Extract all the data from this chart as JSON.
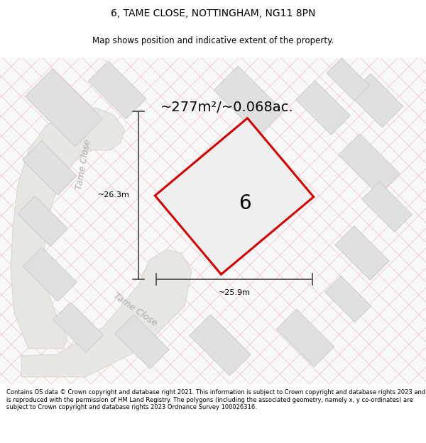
{
  "title_line1": "6, TAME CLOSE, NOTTINGHAM, NG11 8PN",
  "title_line2": "Map shows position and indicative extent of the property.",
  "area_text": "~277m²/~0.068ac.",
  "plot_number": "6",
  "dim_width": "~25.9m",
  "dim_height": "~26.3m",
  "street_label1": "Tame Close",
  "street_label2": "Tame Close",
  "footer_text": "Contains OS data © Crown copyright and database right 2021. This information is subject to Crown copyright and database rights 2023 and is reproduced with the permission of HM Land Registry. The polygons (including the associated geometry, namely x, y co-ordinates) are subject to Crown copyright and database rights 2023 Ordnance Survey 100026316.",
  "bg_color": "#f5f5f5",
  "map_bg_color": "#f8f8f8",
  "plot_fill": "#efefef",
  "plot_edge": "#cc0000",
  "building_fill": "#e0e0e0",
  "building_edge": "#cccccc",
  "hatch_color": "#f0c8c8",
  "road_color": "#e8e8e8",
  "dim_color": "#444444",
  "street_color": "#aaaaaa",
  "title_bg": "#ffffff",
  "footer_bg": "#ffffff",
  "title_fontsize": 10,
  "subtitle_fontsize": 8.5,
  "area_fontsize": 14,
  "dim_fontsize": 8,
  "street_fontsize": 9,
  "plot_num_fontsize": 20,
  "footer_fontsize": 6.0
}
